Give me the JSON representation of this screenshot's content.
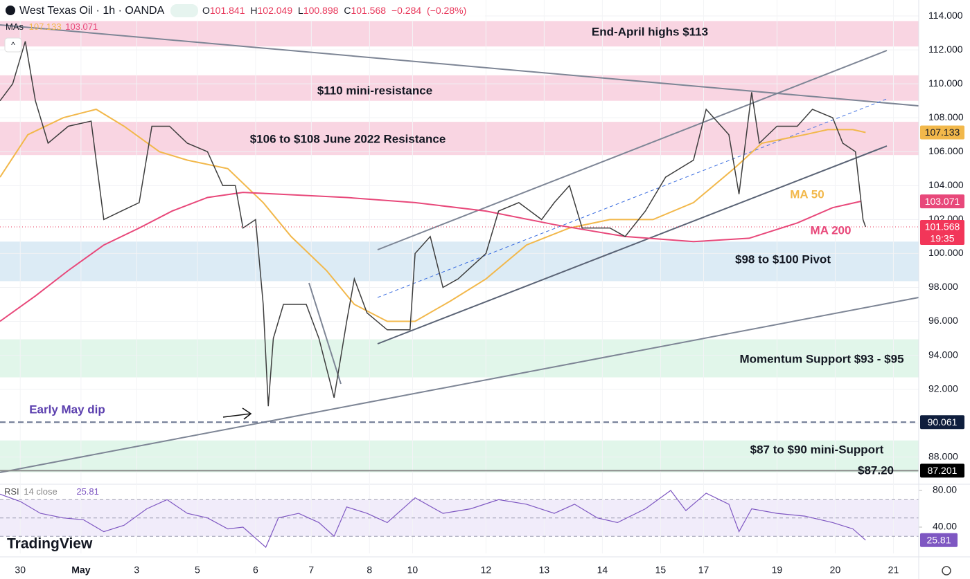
{
  "chart_data": [
    {
      "type": "line",
      "title": "West Texas Oil · 1h · OANDA",
      "ohlc": [
        {
          "label": "O",
          "value": 101.841
        },
        {
          "label": "H",
          "value": 102.049
        },
        {
          "label": "L",
          "value": 100.898
        }
      ],
      "close_label": "C",
      "change": [
        {
          "value": -0.284,
          "label": "−0.284"
        },
        {
          "value": -0.28,
          "label": "(−0.28%)"
        }
      ],
      "ma_legend": "MAs",
      "countdown": "19:35",
      "price": {
        "color": "#3d3d3d",
        "x": [
          0,
          5,
          10,
          14,
          19,
          27,
          36,
          41,
          48,
          55,
          60,
          67,
          74,
          82,
          88,
          93,
          96,
          101,
          104,
          106,
          108,
          112,
          121,
          126,
          132,
          137,
          140,
          145,
          153,
          162,
          164,
          170,
          175,
          181,
          192,
          197,
          205,
          214,
          219,
          225,
          230,
          241,
          247,
          255,
          263,
          274,
          279,
          288,
          292,
          297,
          300,
          307,
          315,
          321,
          329,
          333,
          338,
          341,
          342
        ],
        "values": [
          109,
          110,
          112.5,
          109,
          106.5,
          107.5,
          107.8,
          102,
          102.5,
          103,
          107.5,
          107.5,
          106.5,
          106,
          104,
          104,
          101.5,
          102,
          97,
          91,
          95,
          97,
          97,
          95,
          91.5,
          96,
          98.5,
          96.5,
          95.5,
          95.5,
          100,
          101,
          98,
          98.5,
          100,
          102.5,
          103,
          102,
          103,
          104,
          101.5,
          101.5,
          101,
          102.5,
          104.5,
          105.5,
          108.5,
          107,
          103.5,
          109.5,
          106.5,
          107.5,
          107.5,
          108.5,
          108,
          106.5,
          106,
          102,
          101.568
        ]
      },
      "series": [
        {
          "name": "MA 50",
          "color": "#f2b84b",
          "x": [
            0,
            11,
            25,
            38,
            49,
            63,
            74,
            90,
            104,
            115,
            129,
            140,
            153,
            164,
            178,
            192,
            208,
            225,
            241,
            258,
            274,
            290,
            301,
            318,
            327,
            337,
            342
          ],
          "values": [
            104.5,
            107,
            108,
            108.5,
            107.5,
            106,
            105.5,
            105,
            103,
            101,
            99,
            97,
            96,
            96,
            97.2,
            98.5,
            100.5,
            101.5,
            102,
            102,
            103,
            105,
            106.5,
            107,
            107.3,
            107.3,
            107.133
          ]
        },
        {
          "name": "MA 200",
          "color": "#e8487a",
          "x": [
            0,
            14,
            27,
            41,
            55,
            68,
            82,
            96,
            110,
            137,
            164,
            192,
            219,
            247,
            274,
            296,
            315,
            329,
            340
          ],
          "values": [
            96,
            97.5,
            99,
            100.5,
            101.5,
            102.5,
            103.3,
            103.6,
            103.5,
            103.3,
            103,
            102.5,
            101.7,
            101,
            100.7,
            100.9,
            101.8,
            102.7,
            103.071
          ]
        }
      ],
      "zones": [
        {
          "label": "End-April highs $113",
          "range": [
            112.2,
            113.7
          ],
          "color": "#f9d5e2"
        },
        {
          "label": "$110 mini-resistance",
          "range": [
            109.0,
            110.5
          ],
          "color": "#f9d5e2"
        },
        {
          "label": "$106 to $108 June 2022 Resistance",
          "range": [
            105.8,
            107.76
          ],
          "color": "#f9d5e2"
        },
        {
          "label": "$98 to $100 Pivot",
          "range": [
            98.37,
            100.7
          ],
          "color": "#dcebf5"
        },
        {
          "label": "Momentum Support $93 - $95",
          "range": [
            92.7,
            94.94
          ],
          "color": "#e1f6ea"
        },
        {
          "label": "$87 to $90 mini-Support",
          "range": [
            87.1,
            88.98
          ],
          "color": "#e1f6ea"
        }
      ],
      "levels": [
        {
          "value": 90.061,
          "label": "Early May dip",
          "color": "#6a7590",
          "badge": "#0f1e3d"
        },
        {
          "value": 87.201,
          "value_label": "$87.20",
          "color": "#8a8a8a",
          "badge": "#000000"
        }
      ],
      "xlim": [
        0,
        363
      ],
      "ylim": [
        86.4,
        114.94
      ],
      "yticks": [
        {
          "value": 114,
          "label": "114.000"
        },
        {
          "value": 112,
          "label": "112.000"
        },
        {
          "value": 110,
          "label": "110.000"
        },
        {
          "value": 108,
          "label": "108.000"
        },
        {
          "value": 106,
          "label": "106.000"
        },
        {
          "value": 104,
          "label": "104.000"
        },
        {
          "value": 102,
          "label": "102.000"
        },
        {
          "value": 100,
          "label": "100.000"
        },
        {
          "value": 98,
          "label": "98.000"
        },
        {
          "value": 96,
          "label": "96.000"
        },
        {
          "value": 94,
          "label": "94.000"
        },
        {
          "value": 92,
          "label": "92.000"
        },
        {
          "value": 90,
          "label": "90.000"
        },
        {
          "value": 88,
          "label": "88.000"
        }
      ],
      "xticks": [
        {
          "value": 8,
          "label": "30"
        },
        {
          "value": 32,
          "label": "May"
        },
        {
          "value": 54,
          "label": "3"
        },
        {
          "value": 78,
          "label": "5"
        },
        {
          "value": 101,
          "label": "6"
        },
        {
          "value": 123,
          "label": "7"
        },
        {
          "value": 146,
          "label": "8"
        },
        {
          "value": 163,
          "label": "10"
        },
        {
          "value": 192,
          "label": "12"
        },
        {
          "value": 215,
          "label": "13"
        },
        {
          "value": 238,
          "label": "14"
        },
        {
          "value": 261,
          "label": "15"
        },
        {
          "value": 278,
          "label": "17"
        },
        {
          "value": 307,
          "label": "19"
        },
        {
          "value": 330,
          "label": "20"
        },
        {
          "value": 353,
          "label": "21"
        }
      ],
      "grid": true,
      "brand": "TradingView"
    },
    {
      "type": "line",
      "name": "RSI",
      "params": "14 close",
      "color": "#7e57c2",
      "x": [
        0,
        8,
        16,
        25,
        33,
        41,
        49,
        58,
        66,
        74,
        82,
        90,
        96,
        105,
        110,
        118,
        126,
        132,
        137,
        145,
        153,
        164,
        175,
        186,
        197,
        208,
        219,
        227,
        236,
        244,
        255,
        265,
        271,
        279,
        288,
        292,
        297,
        307,
        318,
        329,
        337,
        342
      ],
      "values": [
        76,
        68,
        55,
        50,
        48,
        35,
        42,
        60,
        70,
        55,
        50,
        38,
        40,
        18,
        50,
        55,
        45,
        30,
        62,
        55,
        45,
        72,
        55,
        60,
        70,
        65,
        55,
        65,
        50,
        45,
        60,
        80,
        58,
        77,
        65,
        35,
        60,
        55,
        52,
        45,
        38,
        25.81
      ],
      "bands": [
        70,
        50,
        30
      ],
      "xlim": [
        0,
        363
      ],
      "ylim": [
        11.3,
        86.8
      ],
      "yticks": [
        {
          "value": 80,
          "label": "80.00"
        },
        {
          "value": 40,
          "label": "40.00"
        }
      ]
    }
  ]
}
